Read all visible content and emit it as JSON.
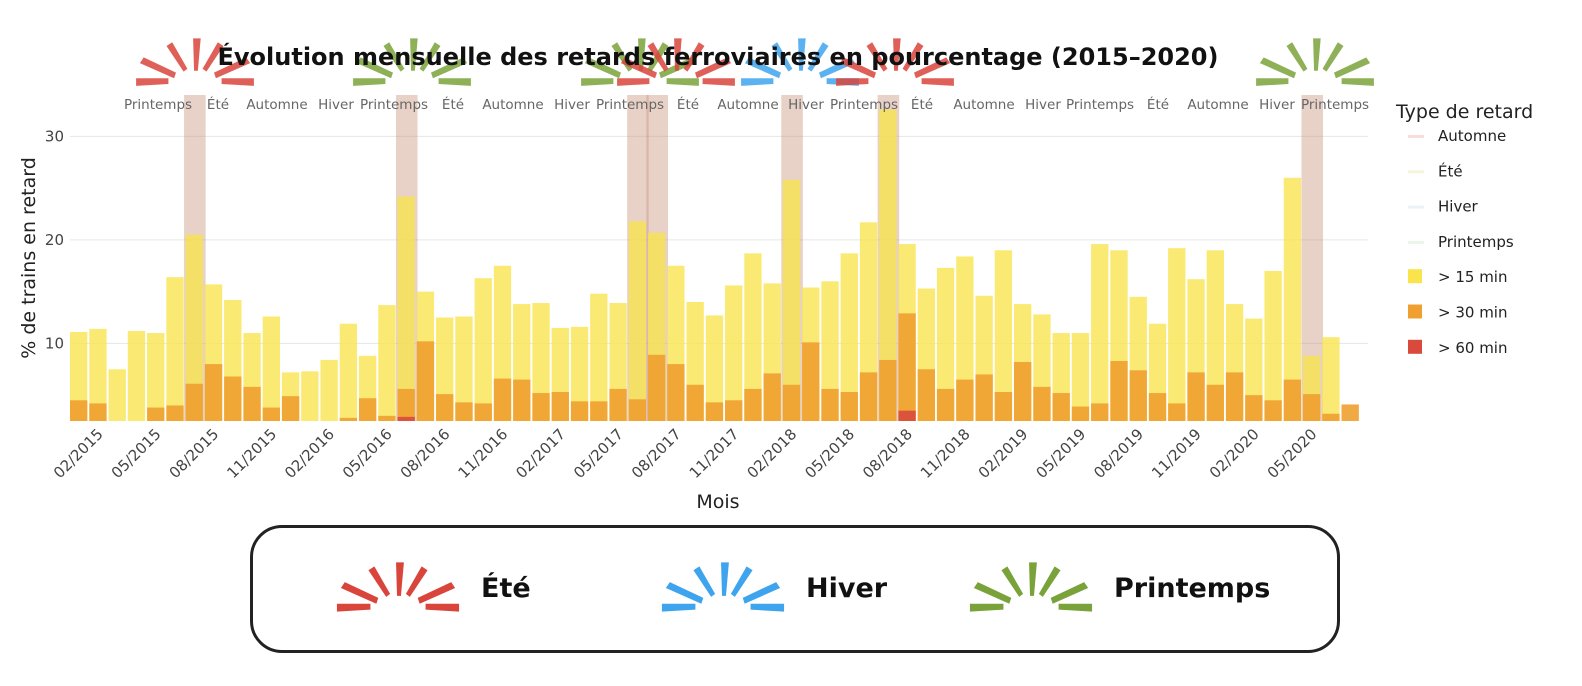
{
  "chart_data": {
    "type": "bar",
    "title": "Évolution mensuelle des retards ferroviaires en pourcentage (2015–2020)",
    "xlabel": "Mois",
    "ylabel": "% de trains en retard",
    "ylim": [
      2.5,
      34
    ],
    "yticks": [
      10,
      20,
      30
    ],
    "grid": true,
    "months": [
      "01/2015",
      "02/2015",
      "03/2015",
      "04/2015",
      "05/2015",
      "06/2015",
      "07/2015",
      "08/2015",
      "09/2015",
      "10/2015",
      "11/2015",
      "12/2015",
      "01/2016",
      "02/2016",
      "03/2016",
      "04/2016",
      "05/2016",
      "06/2016",
      "07/2016",
      "08/2016",
      "09/2016",
      "10/2016",
      "11/2016",
      "12/2016",
      "01/2017",
      "02/2017",
      "03/2017",
      "04/2017",
      "05/2017",
      "06/2017",
      "07/2017",
      "08/2017",
      "09/2017",
      "10/2017",
      "11/2017",
      "12/2017",
      "01/2018",
      "02/2018",
      "03/2018",
      "04/2018",
      "05/2018",
      "06/2018",
      "07/2018",
      "08/2018",
      "09/2018",
      "10/2018",
      "11/2018",
      "12/2018",
      "01/2019",
      "02/2019",
      "03/2019",
      "04/2019",
      "05/2019",
      "06/2019",
      "07/2019",
      "08/2019",
      "09/2019",
      "10/2019",
      "11/2019",
      "12/2019",
      "01/2020",
      "02/2020",
      "03/2020",
      "04/2020",
      "05/2020",
      "06/2020",
      "07/2020"
    ],
    "tick_labels": [
      "02/2015",
      "05/2015",
      "08/2015",
      "11/2015",
      "02/2016",
      "05/2016",
      "08/2016",
      "11/2016",
      "02/2017",
      "05/2017",
      "08/2017",
      "11/2017",
      "02/2018",
      "05/2018",
      "08/2018",
      "11/2018",
      "02/2019",
      "05/2019",
      "08/2019",
      "11/2019",
      "02/2020",
      "05/2020"
    ],
    "series": [
      {
        "name": "> 15 min",
        "color": "#f9e44b",
        "values": [
          11.1,
          11.4,
          7.5,
          11.2,
          11.0,
          16.4,
          20.5,
          15.7,
          14.2,
          11.0,
          12.6,
          7.2,
          7.3,
          8.4,
          11.9,
          8.8,
          13.7,
          24.2,
          15.0,
          12.5,
          12.6,
          16.3,
          17.5,
          13.8,
          13.9,
          11.5,
          11.6,
          14.8,
          13.9,
          21.8,
          20.7,
          17.5,
          14.0,
          12.7,
          15.6,
          18.7,
          15.8,
          25.8,
          15.4,
          16.0,
          18.7,
          21.7,
          32.6,
          19.6,
          15.3,
          17.3,
          18.4,
          14.6,
          19.0,
          13.8,
          12.8,
          11.0,
          11.0,
          19.6,
          19.0,
          14.5,
          11.9,
          19.2,
          16.2,
          19.0,
          13.8,
          12.4,
          17.0,
          26.0,
          8.8,
          10.6,
          0
        ]
      },
      {
        "name": "> 30 min",
        "color": "#f0a030",
        "values": [
          4.5,
          4.2,
          0,
          0,
          3.8,
          4.0,
          6.1,
          8.0,
          6.8,
          5.8,
          3.8,
          4.9,
          0,
          0,
          2.8,
          4.7,
          3.0,
          5.6,
          10.2,
          5.1,
          4.3,
          4.2,
          6.6,
          6.5,
          5.2,
          5.3,
          4.4,
          4.4,
          5.6,
          4.6,
          8.9,
          8.0,
          6.0,
          4.3,
          4.5,
          5.6,
          7.1,
          6.0,
          10.1,
          5.6,
          5.3,
          7.2,
          8.4,
          12.9,
          7.5,
          5.6,
          6.5,
          7.0,
          5.3,
          8.2,
          5.8,
          5.2,
          3.9,
          4.2,
          8.3,
          7.4,
          5.2,
          4.2,
          7.2,
          6.0,
          7.2,
          5.0,
          4.5,
          6.5,
          5.1,
          3.2,
          4.1
        ]
      },
      {
        "name": "> 60 min",
        "color": "#d94a3d",
        "values": [
          0,
          0,
          0,
          0,
          0,
          0,
          0,
          0,
          0,
          0,
          0,
          0,
          0,
          0,
          0,
          0,
          0,
          2.9,
          0,
          0,
          0,
          0,
          0,
          0,
          0,
          0,
          0,
          0,
          0,
          0,
          0,
          0,
          0,
          0,
          0,
          0,
          0,
          0,
          0,
          0,
          0,
          0,
          0,
          3.5,
          0,
          0,
          0,
          0,
          0,
          0,
          0,
          0,
          0,
          0,
          0,
          0,
          0,
          0,
          0,
          0,
          0,
          0,
          0,
          0,
          0,
          0,
          0
        ]
      }
    ],
    "season_labels": [
      "Printemps",
      "Été",
      "Automne",
      "Hiver",
      "Printemps",
      "Été",
      "Automne",
      "Hiver",
      "Printemps",
      "Été",
      "Automne",
      "Hiver",
      "Printemps",
      "Été",
      "Automne",
      "Hiver",
      "Printemps",
      "Été",
      "Automne",
      "Hiver",
      "Printemps"
    ],
    "highlight_months": [
      "07/2015",
      "06/2016",
      "06/2017",
      "07/2017",
      "02/2018",
      "07/2018",
      "05/2020"
    ],
    "legend": {
      "title": "Type de retard",
      "placement": "right",
      "items": [
        {
          "label": "Automne",
          "color": "#f6ddd5"
        },
        {
          "label": "Été",
          "color": "#f5f5dc"
        },
        {
          "label": "Hiver",
          "color": "#eaf3f8"
        },
        {
          "label": "Printemps",
          "color": "#eaf6ea"
        },
        {
          "label": "> 15 min",
          "color": "#f9e44b"
        },
        {
          "label": "> 30 min",
          "color": "#f0a030"
        },
        {
          "label": "> 60 min",
          "color": "#d94a3d"
        }
      ]
    }
  },
  "season_key": {
    "items": [
      {
        "label": "Été",
        "color": "#d9443b",
        "icon": "burst-red-icon"
      },
      {
        "label": "Hiver",
        "color": "#3fa4ee",
        "icon": "burst-blue-icon"
      },
      {
        "label": "Printemps",
        "color": "#7aa23a",
        "icon": "burst-green-icon"
      }
    ]
  },
  "colors": {
    "highlight": "#c9917a",
    "grid": "#e6e6e6"
  }
}
